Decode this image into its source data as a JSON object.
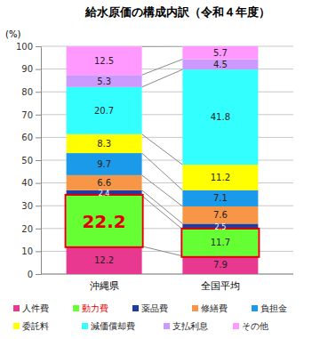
{
  "chart_data": {
    "type": "bar",
    "title": "給水原価の構成内訳（令和４年度）",
    "ylabel": "(%)",
    "categories": [
      "沖縄県",
      "全国平均"
    ],
    "series": [
      {
        "name": "人件費",
        "color": "#e8388f",
        "values": [
          12.2,
          7.9
        ]
      },
      {
        "name": "動力費",
        "color": "#66ff33",
        "values": [
          22.2,
          11.7
        ]
      },
      {
        "name": "薬品費",
        "color": "#1f3c9e",
        "values": [
          2.4,
          2.5
        ]
      },
      {
        "name": "修繕費",
        "color": "#f79646",
        "values": [
          6.6,
          7.6
        ]
      },
      {
        "name": "負担金",
        "color": "#1a9ae8",
        "values": [
          9.7,
          7.1
        ]
      },
      {
        "name": "委託料",
        "color": "#ffff00",
        "values": [
          8.3,
          11.2
        ]
      },
      {
        "name": "減価償却費",
        "color": "#33ffff",
        "values": [
          20.7,
          41.8
        ]
      },
      {
        "name": "支払利息",
        "color": "#cc99ff",
        "values": [
          5.3,
          4.5
        ]
      },
      {
        "name": "その他",
        "color": "#ff99ff",
        "values": [
          12.5,
          5.7
        ]
      }
    ],
    "ylim": [
      0,
      100
    ],
    "yticks": [
      0,
      10,
      20,
      30,
      40,
      50,
      60,
      70,
      80,
      90,
      100
    ],
    "grid": true,
    "stacked": true,
    "data_labels": true,
    "legend": "bottom"
  }
}
